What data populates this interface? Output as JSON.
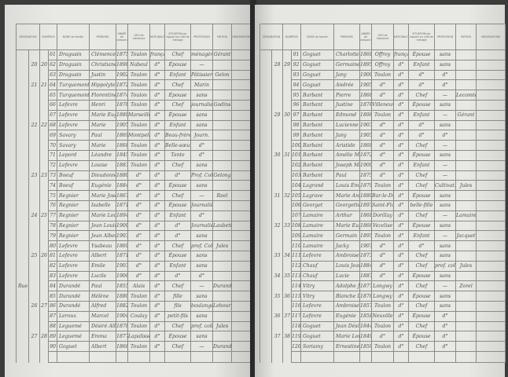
{
  "headers": [
    "DÉSIGNATION",
    "NUMÉROS",
    "NOMS de famille",
    "PRÉNOMS",
    "ANNÉE de naissance",
    "LIEU de naissance",
    "NATIONALITÉ",
    "SITUATION par rapport au chef de ménage",
    "PROFESSION",
    "PATRON",
    "OBSERVATIONS"
  ],
  "left_page": {
    "rows": [
      [
        "",
        "",
        "",
        "61",
        "Dragusin",
        "Clémence",
        "1875",
        "Toulon",
        "français",
        "Chef",
        "ménagère",
        "Gérant"
      ],
      [
        "",
        "20",
        "20",
        "62",
        "Dragusin",
        "Christiane",
        "1898",
        "Nabeul",
        "d°",
        "Épouse",
        "—",
        ""
      ],
      [
        "",
        "",
        "",
        "63",
        "Dragusin",
        "Justin",
        "1902",
        "Toulon",
        "d°",
        "Enfant",
        "Pâtissier",
        "Gelon"
      ],
      [
        "",
        "21",
        "21",
        "64",
        "Turquemont",
        "Hippolyte",
        "1872",
        "Toulon",
        "d°",
        "Chef",
        "Marin",
        ""
      ],
      [
        "",
        "",
        "",
        "65",
        "Turquemont",
        "Florentine",
        "1874",
        "Toulon",
        "d°",
        "Épouse",
        "sans",
        ""
      ],
      [
        "",
        "",
        "",
        "66",
        "Lefevre",
        "Henri",
        "1878",
        "Toulon",
        "d°",
        "Chef",
        "journalier",
        "Godins"
      ],
      [
        "",
        "",
        "",
        "67",
        "Lefevre",
        "Marie Eugénie",
        "1880",
        "Marseille",
        "d°",
        "Épouse",
        "sans",
        ""
      ],
      [
        "",
        "22",
        "22",
        "68",
        "Lefevre",
        "Marie",
        "1905",
        "Toulon",
        "d°",
        "Enfant",
        "sans",
        ""
      ],
      [
        "",
        "",
        "",
        "69",
        "Savary",
        "Paul",
        "1869",
        "Montpellier",
        "d°",
        "Beau-frère",
        "Journ.",
        ""
      ],
      [
        "",
        "",
        "",
        "70",
        "Savary",
        "Marie",
        "1868",
        "Toulon",
        "d°",
        "Belle-sœur",
        "d°",
        ""
      ],
      [
        "",
        "",
        "",
        "71",
        "Lepord",
        "Léandre",
        "1845",
        "Toulon",
        "d°",
        "Tante",
        "d°",
        ""
      ],
      [
        "",
        "",
        "",
        "72",
        "Lefevre",
        "Louise",
        "1883",
        "Toulon",
        "d°",
        "Chef",
        "sans",
        ""
      ],
      [
        "",
        "23",
        "23",
        "73",
        "Boeuf",
        "Dieudonné",
        "1880",
        "d°",
        "d°",
        "d°",
        "Prof. Coll.",
        "Gelong"
      ],
      [
        "",
        "",
        "",
        "74",
        "Boeuf",
        "Eugénie",
        "1884",
        "d°",
        "d°",
        "Épouse",
        "sans",
        ""
      ],
      [
        "",
        "",
        "",
        "75",
        "Regnier",
        "Marie Joseph",
        "1867",
        "d°",
        "d°",
        "Chef",
        "—",
        "Reel"
      ],
      [
        "",
        "",
        "",
        "76",
        "Regnier",
        "Isabelle",
        "1871",
        "d°",
        "d°",
        "Épouse",
        "Journalière",
        ""
      ],
      [
        "",
        "24",
        "25",
        "77",
        "Regnier",
        "Marie Louise",
        "1894",
        "d°",
        "d°",
        "Enfant",
        "d°",
        ""
      ],
      [
        "",
        "",
        "",
        "78",
        "Regnier",
        "Jean Louis",
        "1900",
        "d°",
        "d°",
        "d°",
        "Journalier",
        "Laubetta"
      ],
      [
        "",
        "",
        "",
        "79",
        "Regnier",
        "Jean Albert",
        "1903",
        "d°",
        "d°",
        "d°",
        "sans",
        ""
      ],
      [
        "",
        "",
        "",
        "80",
        "Lefevre",
        "Ysabeau",
        "1869",
        "d°",
        "d°",
        "Chef",
        "prof. Coll.",
        "Jules"
      ],
      [
        "",
        "25",
        "26",
        "81",
        "Lefevre",
        "Albert",
        "1871",
        "d°",
        "d°",
        "Épouse",
        "sans",
        ""
      ],
      [
        "",
        "",
        "",
        "82",
        "Lefevre",
        "Emile",
        "1903",
        "d°",
        "d°",
        "Enfant",
        "sans",
        ""
      ],
      [
        "",
        "",
        "",
        "83",
        "Lefevre",
        "Lucile",
        "1906",
        "d°",
        "d°",
        "d°",
        "d°",
        ""
      ],
      [
        "Rue des Bois",
        "",
        "",
        "84",
        "Durandé",
        "Paul",
        "1855",
        "Alais",
        "d°",
        "Chef",
        "—",
        "Durandé"
      ],
      [
        "",
        "",
        "",
        "85",
        "Durandé",
        "Hélène",
        "1880",
        "Toulon",
        "d°",
        "fille",
        "sans",
        ""
      ],
      [
        "",
        "26",
        "27",
        "86",
        "Durandé",
        "Alfred",
        "1882",
        "Toulon",
        "d°",
        "fils",
        "boulanger",
        "Lebourg"
      ],
      [
        "",
        "",
        "",
        "87",
        "Leroux",
        "Marcel",
        "1904",
        "Coulay",
        "d°",
        "petit-fils",
        "sans",
        ""
      ],
      [
        "",
        "",
        "",
        "88",
        "Leguemé",
        "Désiré Albert",
        "1878",
        "Toulon",
        "d°",
        "Chef",
        "prof. coll.",
        "Jules"
      ],
      [
        "",
        "27",
        "28",
        "89",
        "Leguemé",
        "Emma",
        "1877",
        "Lapalisse",
        "d°",
        "Épouse",
        "sans",
        ""
      ],
      [
        "",
        "",
        "",
        "90",
        "Goguet",
        "Albert",
        "1868",
        "Toulon",
        "d°",
        "Chef",
        "—",
        "Durandé"
      ]
    ]
  },
  "right_page": {
    "rows": [
      [
        "",
        "",
        "",
        "91",
        "Goguet",
        "Charlotte",
        "1868",
        "Offroy",
        "français",
        "Épouse",
        "sans",
        ""
      ],
      [
        "",
        "28",
        "29",
        "92",
        "Goguet",
        "Germaine",
        "1895",
        "Offroy",
        "d°",
        "Enfant",
        "sans",
        ""
      ],
      [
        "",
        "",
        "",
        "93",
        "Goguet",
        "Jany",
        "1900",
        "Toulon",
        "d°",
        "d°",
        "d°",
        ""
      ],
      [
        "",
        "",
        "",
        "94",
        "Goguet",
        "Andrée",
        "1905",
        "d°",
        "d°",
        "d°",
        "d°",
        ""
      ],
      [
        "",
        "",
        "",
        "95",
        "Barbant",
        "Pierre",
        "1868",
        "d°",
        "d°",
        "Chef",
        "—",
        "Lecomte"
      ],
      [
        "",
        "",
        "",
        "96",
        "Barbant",
        "Justine",
        "1878",
        "Villeneuve",
        "d°",
        "Épouse",
        "sans",
        ""
      ],
      [
        "",
        "29",
        "30",
        "97",
        "Barbant",
        "Edmond",
        "1898",
        "Toulon",
        "d°",
        "Enfant",
        "—",
        "Gérant"
      ],
      [
        "",
        "",
        "",
        "98",
        "Barbant",
        "Lucienne",
        "1903",
        "d°",
        "d°",
        "d°",
        "sans",
        ""
      ],
      [
        "",
        "",
        "",
        "99",
        "Barbant",
        "Jany",
        "1905",
        "d°",
        "d°",
        "d°",
        "d°",
        ""
      ],
      [
        "",
        "",
        "",
        "100",
        "Barbant",
        "Aristide",
        "1868",
        "d°",
        "d°",
        "Chef",
        "—",
        ""
      ],
      [
        "",
        "30",
        "31",
        "101",
        "Barbant",
        "Amélie Marie",
        "1872",
        "d°",
        "d°",
        "Épouse",
        "sans",
        ""
      ],
      [
        "",
        "",
        "",
        "102",
        "Barbant",
        "Joseph Michel",
        "1900",
        "d°",
        "d°",
        "Enfant",
        "—",
        ""
      ],
      [
        "",
        "",
        "",
        "103",
        "Barbant",
        "Paul",
        "1875",
        "d°",
        "d°",
        "Chef",
        "—",
        ""
      ],
      [
        "",
        "",
        "",
        "104",
        "Lagrand",
        "Louis Émile",
        "1879",
        "Toulon",
        "d°",
        "Chef",
        "Cultivat.",
        "Jules"
      ],
      [
        "",
        "31",
        "32",
        "105",
        "Lagrave",
        "Marie Anne",
        "1880",
        "Bar-le-Duc",
        "d°",
        "Épouse",
        "sans",
        ""
      ],
      [
        "",
        "",
        "",
        "106",
        "Georget",
        "Georgette",
        "1897",
        "Saint-Florentin",
        "d°",
        "belle-fille",
        "sans",
        ""
      ],
      [
        "",
        "",
        "",
        "107",
        "Lamaire",
        "Arthur",
        "1868",
        "Dorillay",
        "d°",
        "Chef",
        "—",
        "Lamaire"
      ],
      [
        "",
        "32",
        "33",
        "108",
        "Lamaire",
        "Marie Eugénie",
        "1866",
        "Vezelise",
        "d°",
        "Épouse",
        "sans",
        ""
      ],
      [
        "",
        "",
        "",
        "109",
        "Lamaire",
        "Germain",
        "1895",
        "Toulon",
        "d°",
        "Enfant",
        "—",
        "Jacquet"
      ],
      [
        "",
        "",
        "",
        "110",
        "Lamaire",
        "Jacky",
        "1907",
        "d°",
        "d°",
        "d°",
        "sans",
        ""
      ],
      [
        "",
        "33",
        "34",
        "111",
        "Lefevre",
        "Ambroise",
        "1873",
        "d°",
        "d°",
        "Chef",
        "sans",
        ""
      ],
      [
        "",
        "",
        "",
        "112",
        "Chauf",
        "Louis Jean Baptiste",
        "1884",
        "d°",
        "d°",
        "Chef",
        "prof. coll.",
        "Jules"
      ],
      [
        "",
        "34",
        "35",
        "113",
        "Chauf",
        "Lucie",
        "1887",
        "d°",
        "d°",
        "Épouse",
        "sans",
        ""
      ],
      [
        "",
        "",
        "",
        "114",
        "Vitry",
        "Adolphe Joseph",
        "1877",
        "Longwy",
        "d°",
        "Chef",
        "—",
        "Zorel"
      ],
      [
        "",
        "35",
        "36",
        "115",
        "Vitry",
        "Blanche Louise",
        "1878",
        "Longwy",
        "d°",
        "Épouse",
        "sans",
        ""
      ],
      [
        "",
        "",
        "",
        "116",
        "Lefevre",
        "Ambroise",
        "1857",
        "Toulon",
        "d°",
        "Chef",
        "sans",
        ""
      ],
      [
        "",
        "36",
        "37",
        "117",
        "Lefevre",
        "Eugénie",
        "1858",
        "Neuville",
        "d°",
        "Épouse",
        "d°",
        ""
      ],
      [
        "",
        "",
        "",
        "118",
        "Goguet",
        "Jean Désiré",
        "1844",
        "Toulon",
        "d°",
        "Chef",
        "d°",
        ""
      ],
      [
        "",
        "37",
        "38",
        "119",
        "Goguet",
        "Marie Louise",
        "1849",
        "d°",
        "d°",
        "Épouse",
        "d°",
        ""
      ],
      [
        "",
        "",
        "",
        "120",
        "Soriamy",
        "Ernestine",
        "1850",
        "Toulon",
        "d°",
        "Chef",
        "d°",
        ""
      ]
    ]
  }
}
